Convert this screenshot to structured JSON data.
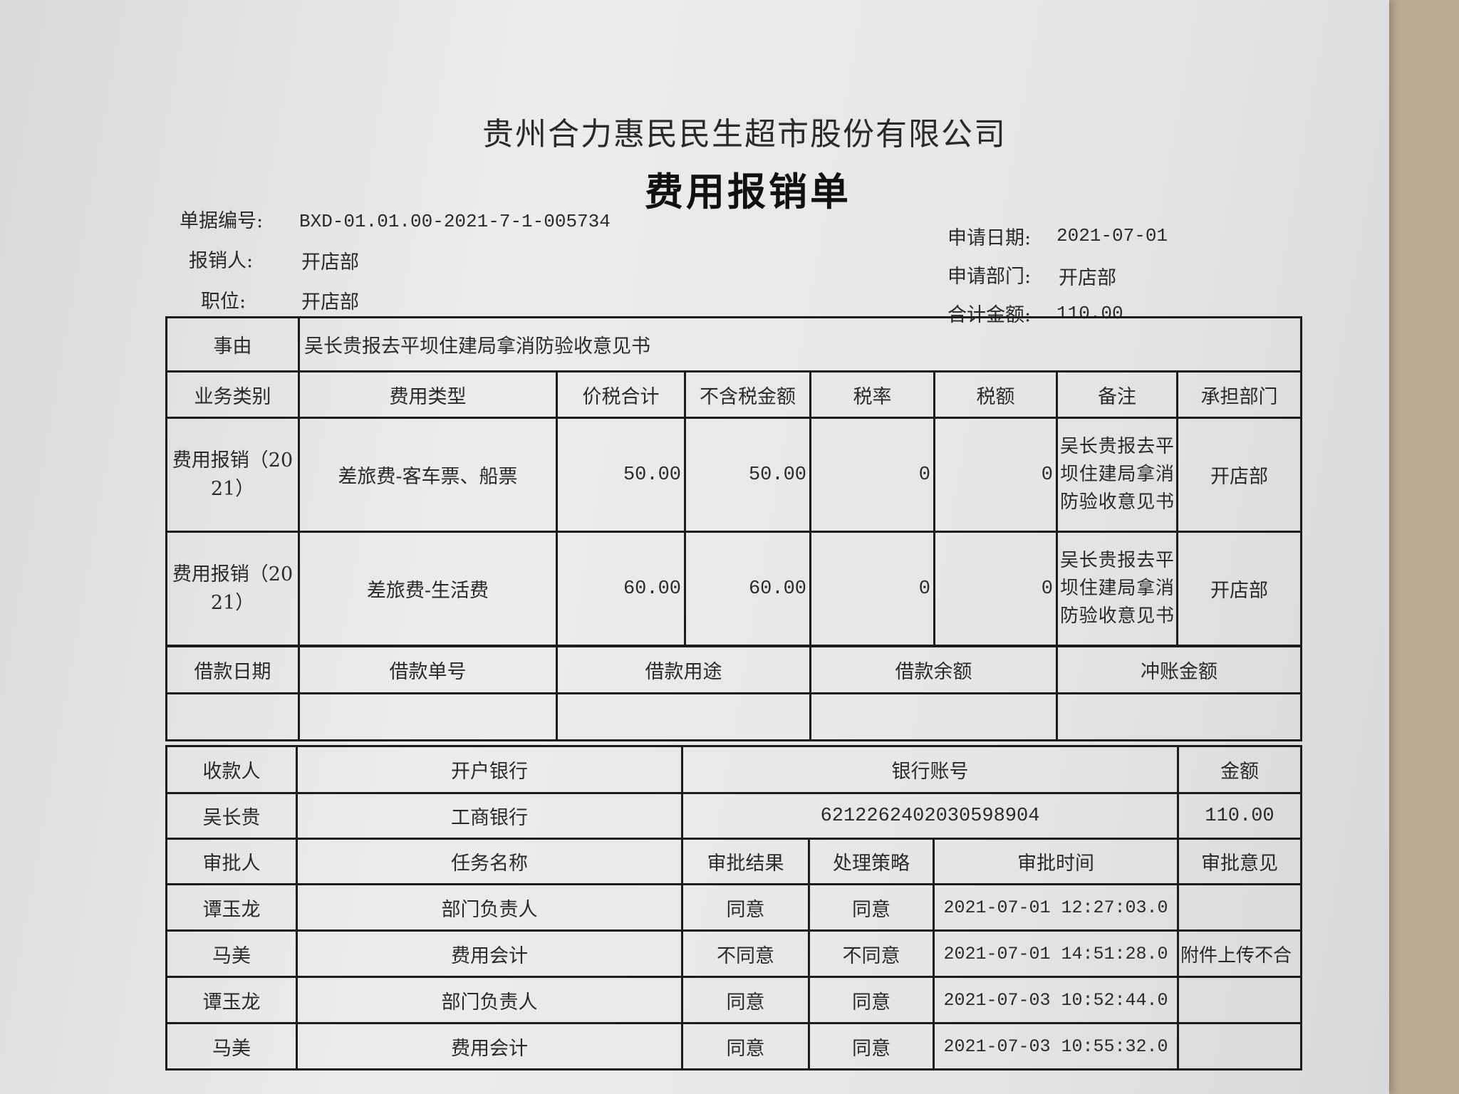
{
  "company": "贵州合力惠民民生超市股份有限公司",
  "title": "费用报销单",
  "fields": {
    "doc_no_label": "单据编号:",
    "doc_no": "BXD-01.01.00-2021-7-1-005734",
    "claimant_label": "报销人:",
    "claimant": "开店部",
    "position_label": "职位:",
    "position": "开店部",
    "apply_date_label": "申请日期:",
    "apply_date": "2021-07-01",
    "apply_dept_label": "申请部门:",
    "apply_dept": "开店部",
    "total_label": "合计金额:",
    "total": "110.00"
  },
  "reason": {
    "label": "事由",
    "value": "吴长贵报去平坝住建局拿消防验收意见书"
  },
  "expense": {
    "headers": [
      "业务类别",
      "费用类型",
      "价税合计",
      "不含税金额",
      "税率",
      "税额",
      "备注",
      "承担部门"
    ],
    "rows": [
      {
        "category": "费用报销（2021）",
        "type": "差旅费-客车票、船票",
        "total": "50.00",
        "net": "50.00",
        "rate": "0",
        "tax": "0",
        "note": "吴长贵报去平坝住建局拿消防验收意见书",
        "dept": "开店部"
      },
      {
        "category": "费用报销（2021）",
        "type": "差旅费-生活费",
        "total": "60.00",
        "net": "60.00",
        "rate": "0",
        "tax": "0",
        "note": "吴长贵报去平坝住建局拿消防验收意见书",
        "dept": "开店部"
      }
    ]
  },
  "loan": {
    "headers": [
      "借款日期",
      "借款单号",
      "借款用途",
      "借款余额",
      "冲账金额"
    ]
  },
  "payee": {
    "headers": [
      "收款人",
      "开户银行",
      "银行账号",
      "金额"
    ],
    "row": {
      "name": "吴长贵",
      "bank": "工商银行",
      "account": "6212262402030598904",
      "amount": "110.00"
    }
  },
  "approval": {
    "headers": [
      "审批人",
      "任务名称",
      "审批结果",
      "处理策略",
      "审批时间",
      "审批意见"
    ],
    "rows": [
      {
        "approver": "谭玉龙",
        "task": "部门负责人",
        "result": "同意",
        "strategy": "同意",
        "time": "2021-07-01 12:27:03.0",
        "opinion": ""
      },
      {
        "approver": "马美",
        "task": "费用会计",
        "result": "不同意",
        "strategy": "不同意",
        "time": "2021-07-01 14:51:28.0",
        "opinion": "附件上传不合"
      },
      {
        "approver": "谭玉龙",
        "task": "部门负责人",
        "result": "同意",
        "strategy": "同意",
        "time": "2021-07-03 10:52:44.0",
        "opinion": ""
      },
      {
        "approver": "马美",
        "task": "费用会计",
        "result": "同意",
        "strategy": "同意",
        "time": "2021-07-03 10:55:32.0",
        "opinion": ""
      }
    ]
  }
}
